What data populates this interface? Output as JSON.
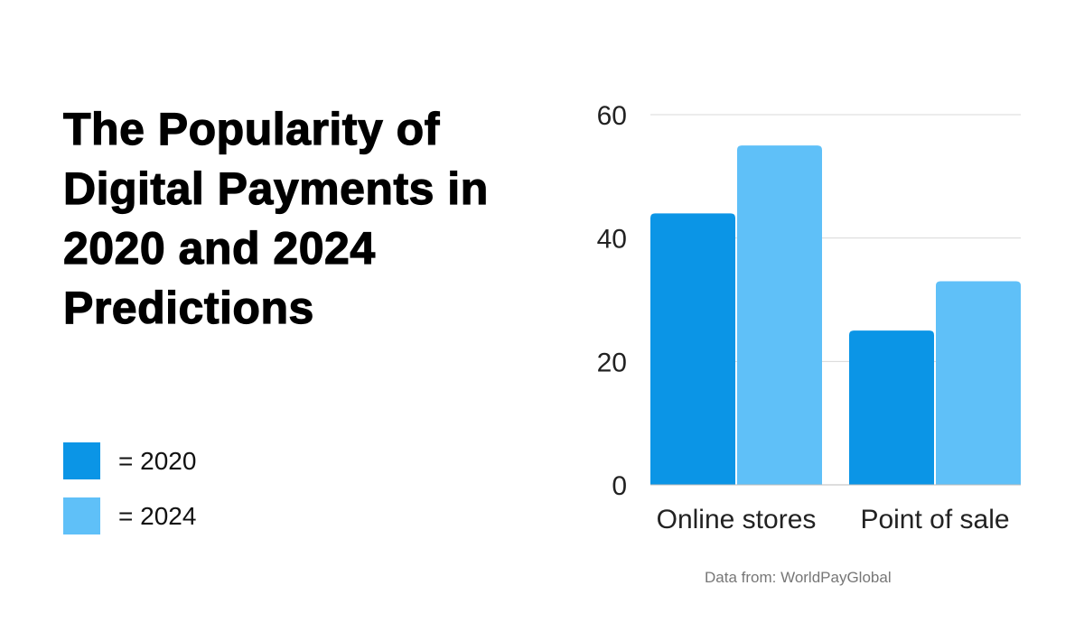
{
  "title": "The Popularity of Digital Payments in 2020 and 2024 Predictions",
  "source": "Data from: WorldPayGlobal",
  "legend": [
    {
      "label": "= 2020",
      "color": "#0b95e6"
    },
    {
      "label": "= 2024",
      "color": "#5fc0f8"
    }
  ],
  "chart_data": {
    "type": "bar",
    "title": "The Popularity of Digital Payments in 2020 and 2024 Predictions",
    "categories": [
      "Online stores",
      "Point of sale"
    ],
    "series": [
      {
        "name": "2020",
        "values": [
          44,
          25
        ],
        "color": "#0b95e6"
      },
      {
        "name": "2024",
        "values": [
          55,
          33
        ],
        "color": "#5fc0f8"
      }
    ],
    "yticks": [
      0,
      20,
      40,
      60
    ],
    "ylim": [
      0,
      60
    ],
    "grid": true,
    "legend_placement": "left",
    "xlabel": "",
    "ylabel": ""
  }
}
